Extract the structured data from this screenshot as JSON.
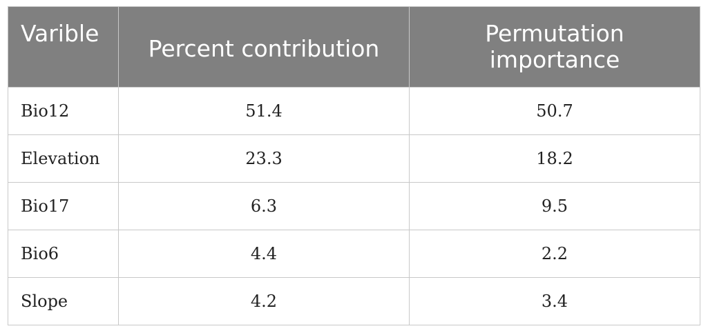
{
  "table": {
    "headers": [
      "Varible",
      "Percent contribution",
      "Permutation importance"
    ],
    "rows": [
      {
        "variable": "Bio12",
        "percent_contribution": "51.4",
        "permutation_importance": "50.7"
      },
      {
        "variable": "Elevation",
        "percent_contribution": "23.3",
        "permutation_importance": "18.2"
      },
      {
        "variable": "Bio17",
        "percent_contribution": "6.3",
        "permutation_importance": "9.5"
      },
      {
        "variable": "Bio6",
        "percent_contribution": "4.4",
        "permutation_importance": "2.2"
      },
      {
        "variable": "Slope",
        "percent_contribution": "4.2",
        "permutation_importance": "3.4"
      }
    ]
  },
  "colors": {
    "header_background": "#808080",
    "header_text": "#ffffff",
    "grid_lines": "#c8c8c8"
  }
}
